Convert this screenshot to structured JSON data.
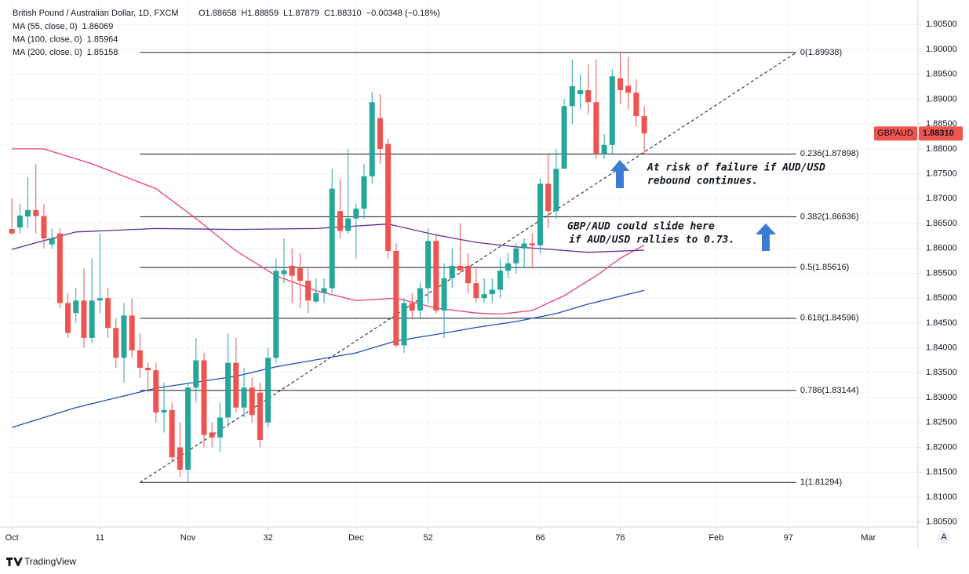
{
  "chart_data": {
    "type": "candlestick",
    "header": {
      "symbol": "British Pound / Australian Dollar, 1D, FXCM",
      "open": "O1.88658",
      "high": "H1.88859",
      "low": "L1.87879",
      "close": "C1.88310",
      "change": "−0.00348 (−0.18%)"
    },
    "up_color": "#26a69a",
    "down_color": "#ef5350",
    "open": [
      1.8639,
      1.8642,
      1.8664,
      1.8677,
      1.8665,
      1.8608,
      1.863,
      1.849,
      1.847,
      1.8495,
      1.842,
      1.8495,
      1.85,
      1.844,
      1.838,
      1.8465,
      1.8395,
      1.836,
      1.8355,
      1.827,
      1.8275,
      1.82,
      1.8155,
      1.832,
      1.8375,
      1.823,
      1.822,
      1.826,
      1.837,
      1.828,
      1.832,
      1.831,
      1.825,
      1.838,
      1.8548,
      1.8565,
      1.856,
      1.8535,
      1.8493,
      1.851,
      1.852,
      1.8675,
      1.8635,
      1.866,
      1.868,
      1.8745,
      1.8862,
      1.881,
      1.8595,
      1.8405,
      1.849,
      1.8475,
      1.852,
      1.8615,
      1.8475,
      1.854,
      1.8565,
      1.8565,
      1.853,
      1.85,
      1.8508,
      1.8517,
      1.8555,
      1.857,
      1.86,
      1.861,
      1.8606,
      1.873,
      1.8675,
      1.876,
      1.8886,
      1.891,
      1.8918,
      1.8894,
      1.879,
      1.8808,
      1.8942,
      1.8927,
      1.8913,
      1.88658
    ],
    "high": [
      1.87,
      1.869,
      1.8742,
      1.877,
      1.869,
      1.864,
      1.864,
      1.851,
      1.852,
      1.856,
      1.858,
      1.863,
      1.852,
      1.846,
      1.849,
      1.85,
      1.843,
      1.837,
      1.837,
      1.833,
      1.829,
      1.825,
      1.833,
      1.842,
      1.839,
      1.825,
      1.829,
      1.843,
      1.842,
      1.836,
      1.834,
      1.833,
      1.84,
      1.858,
      1.862,
      1.86,
      1.859,
      1.856,
      1.854,
      1.854,
      1.876,
      1.874,
      1.88,
      1.869,
      1.877,
      1.8915,
      1.891,
      1.882,
      1.861,
      1.85,
      1.851,
      1.853,
      1.864,
      1.863,
      1.857,
      1.86,
      1.865,
      1.859,
      1.856,
      1.854,
      1.854,
      1.858,
      1.859,
      1.861,
      1.862,
      1.863,
      1.874,
      1.879,
      1.88,
      1.89,
      1.898,
      1.895,
      1.897,
      1.898,
      1.883,
      1.896,
      1.8994,
      1.8985,
      1.894,
      1.88859
    ],
    "low": [
      1.8627,
      1.863,
      1.864,
      1.863,
      1.86,
      1.86,
      1.848,
      1.842,
      1.845,
      1.84,
      1.841,
      1.847,
      1.842,
      1.836,
      1.833,
      1.838,
      1.834,
      1.831,
      1.825,
      1.823,
      1.817,
      1.814,
      1.813,
      1.829,
      1.82,
      1.82,
      1.819,
      1.824,
      1.827,
      1.826,
      1.825,
      1.82,
      1.824,
      1.837,
      1.853,
      1.849,
      1.848,
      1.847,
      1.849,
      1.849,
      1.851,
      1.862,
      1.863,
      1.858,
      1.866,
      1.873,
      1.877,
      1.858,
      1.84,
      1.839,
      1.846,
      1.846,
      1.849,
      1.847,
      1.842,
      1.852,
      1.855,
      1.851,
      1.849,
      1.849,
      1.849,
      1.85,
      1.854,
      1.855,
      1.856,
      1.856,
      1.859,
      1.864,
      1.866,
      1.876,
      1.885,
      1.888,
      1.887,
      1.878,
      1.878,
      1.879,
      1.889,
      1.888,
      1.8845,
      1.87879
    ],
    "close": [
      1.863,
      1.8666,
      1.8677,
      1.8665,
      1.862,
      1.862,
      1.849,
      1.843,
      1.8495,
      1.842,
      1.8495,
      1.85,
      1.844,
      1.838,
      1.8465,
      1.8395,
      1.836,
      1.8355,
      1.827,
      1.8275,
      1.818,
      1.8155,
      1.832,
      1.8375,
      1.8225,
      1.822,
      1.826,
      1.837,
      1.828,
      1.832,
      1.8265,
      1.8215,
      1.838,
      1.8555,
      1.8556,
      1.8545,
      1.8535,
      1.8495,
      1.851,
      1.852,
      1.872,
      1.8635,
      1.866,
      1.868,
      1.8745,
      1.8894,
      1.88,
      1.8595,
      1.8405,
      1.849,
      1.8475,
      1.852,
      1.8615,
      1.8475,
      1.854,
      1.8565,
      1.8556,
      1.853,
      1.85,
      1.8508,
      1.8517,
      1.8555,
      1.857,
      1.86,
      1.861,
      1.8606,
      1.873,
      1.8675,
      1.876,
      1.8886,
      1.8926,
      1.8918,
      1.8894,
      1.879,
      1.8808,
      1.8946,
      1.8918,
      1.8913,
      1.8866,
      1.8831
    ],
    "series": [
      {
        "name": "MA (55, close, 0)",
        "value_label": "1.86069",
        "color": "#ec3f6a",
        "x": [
          0,
          4,
          10,
          18,
          23,
          28,
          33,
          38,
          43,
          48,
          53,
          58,
          61,
          65,
          69,
          73,
          76,
          79
        ],
        "values": [
          1.88,
          1.88,
          1.877,
          1.872,
          1.866,
          1.8595,
          1.8545,
          1.8515,
          1.8495,
          1.85,
          1.848,
          1.847,
          1.8468,
          1.8475,
          1.8505,
          1.8545,
          1.858,
          1.86069
        ]
      },
      {
        "name": "MA (100, close, 0)",
        "value_label": "1.85964",
        "color": "#5e2b97",
        "x": [
          0,
          8,
          18,
          28,
          38,
          47,
          53,
          58,
          63,
          68,
          72,
          79
        ],
        "values": [
          1.8598,
          1.8633,
          1.864,
          1.8638,
          1.864,
          1.8649,
          1.8627,
          1.8612,
          1.8603,
          1.8597,
          1.8592,
          1.85964
        ]
      },
      {
        "name": "MA (200, close, 0)",
        "value_label": "1.85158",
        "color": "#1e4fb8",
        "x": [
          0,
          8,
          18,
          28,
          33,
          43,
          48,
          53,
          58,
          63,
          68,
          72,
          79
        ],
        "values": [
          1.824,
          1.828,
          1.8319,
          1.8343,
          1.8362,
          1.839,
          1.8414,
          1.8427,
          1.8441,
          1.8453,
          1.8469,
          1.8488,
          1.85158
        ]
      }
    ],
    "fib_levels": [
      {
        "value": 1.89938,
        "label": "0(1.89938)"
      },
      {
        "value": 1.87898,
        "label": "0.236(1.87898)"
      },
      {
        "value": 1.86636,
        "label": "0.382(1.86636)"
      },
      {
        "value": 1.85616,
        "label": "0.5(1.85616)"
      },
      {
        "value": 1.84596,
        "label": "0.618(1.84596)"
      },
      {
        "value": 1.83144,
        "label": "0.786(1.83144)"
      },
      {
        "value": 1.81294,
        "label": "1(1.81294)"
      }
    ],
    "last_price": {
      "symbol": "GBPAUD",
      "value": 1.8831,
      "label": "1.88310"
    },
    "annotations": [
      {
        "lines": [
          "At risk of failure if AUD/USD",
          "rebound continues."
        ]
      },
      {
        "lines": [
          "GBP/AUD could slide here",
          "if AUD/USD rallies to 0.73."
        ]
      }
    ],
    "xlim": [
      -0.7,
      113.2
    ],
    "xticks": [
      {
        "value": 0,
        "label": "Oct"
      },
      11,
      {
        "value": 22,
        "label": "Nov"
      },
      32,
      {
        "value": 43,
        "label": "Dec"
      },
      52,
      66,
      76,
      {
        "value": 88,
        "label": "Feb"
      },
      97,
      {
        "value": 107,
        "label": "Mar"
      }
    ],
    "ylim": [
      1.804,
      1.90993
    ],
    "yticks": [
      {
        "value": 1.805,
        "label": "1.80500"
      },
      {
        "value": 1.81,
        "label": "1.81000"
      },
      {
        "value": 1.815,
        "label": "1.81500"
      },
      {
        "value": 1.82,
        "label": "1.82000"
      },
      {
        "value": 1.825,
        "label": "1.82500"
      },
      {
        "value": 1.83,
        "label": "1.83000"
      },
      {
        "value": 1.835,
        "label": "1.83500"
      },
      {
        "value": 1.84,
        "label": "1.84000"
      },
      {
        "value": 1.845,
        "label": "1.84500"
      },
      {
        "value": 1.85,
        "label": "1.85000"
      },
      {
        "value": 1.855,
        "label": "1.85500"
      },
      {
        "value": 1.86,
        "label": "1.86000"
      },
      {
        "value": 1.865,
        "label": "1.86500"
      },
      {
        "value": 1.87,
        "label": "1.87000"
      },
      {
        "value": 1.875,
        "label": "1.87500"
      },
      {
        "value": 1.88,
        "label": "1.88000"
      },
      {
        "value": 1.885,
        "label": "1.88500"
      },
      {
        "value": 1.89,
        "label": "1.89000"
      },
      {
        "value": 1.895,
        "label": "1.89500"
      },
      {
        "value": 1.9,
        "label": "1.90000"
      },
      {
        "value": 1.905,
        "label": "1.90500"
      }
    ],
    "grid": true,
    "axis_badge": "A",
    "brand": "TradingView"
  }
}
